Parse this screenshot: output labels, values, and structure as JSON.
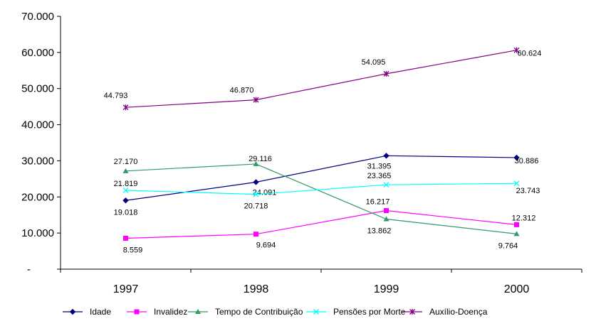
{
  "chart_data": {
    "type": "line",
    "categories": [
      "1997",
      "1998",
      "1999",
      "2000"
    ],
    "ylim": [
      0,
      70000
    ],
    "y_ticks": [
      0,
      10000,
      20000,
      30000,
      40000,
      50000,
      60000,
      70000
    ],
    "y_tick_labels": [
      "-",
      "10.000",
      "20.000",
      "30.000",
      "40.000",
      "50.000",
      "60.000",
      "70.000"
    ],
    "grid": false,
    "legend_position": "bottom",
    "series": [
      {
        "name": "Idade",
        "color": "#000080",
        "marker": "diamond",
        "values": [
          19018,
          24091,
          31395,
          30886
        ],
        "labels": [
          "19.018",
          "24.091",
          "31.395",
          "30.886"
        ]
      },
      {
        "name": "Invalidez",
        "color": "#FF00FF",
        "marker": "square",
        "values": [
          8559,
          9694,
          16217,
          12312
        ],
        "labels": [
          "8.559",
          "9.694",
          "16.217",
          "12.312"
        ]
      },
      {
        "name": "Tempo de Contribuição",
        "color": "#339966",
        "marker": "triangle",
        "values": [
          27170,
          29116,
          13862,
          9764
        ],
        "labels": [
          "27.170",
          "29.116",
          "13.862",
          "9.764"
        ]
      },
      {
        "name": "Pensões por Morte",
        "color": "#00FFFF",
        "marker": "x",
        "values": [
          21819,
          20718,
          23365,
          23743
        ],
        "labels": [
          "21.819",
          "20.718",
          "23.365",
          "23.743"
        ]
      },
      {
        "name": "Auxílio-Doença",
        "color": "#800080",
        "marker": "star",
        "values": [
          44793,
          46870,
          54095,
          60624
        ],
        "labels": [
          "44.793",
          "46.870",
          "54.095",
          "60.624"
        ]
      }
    ]
  }
}
